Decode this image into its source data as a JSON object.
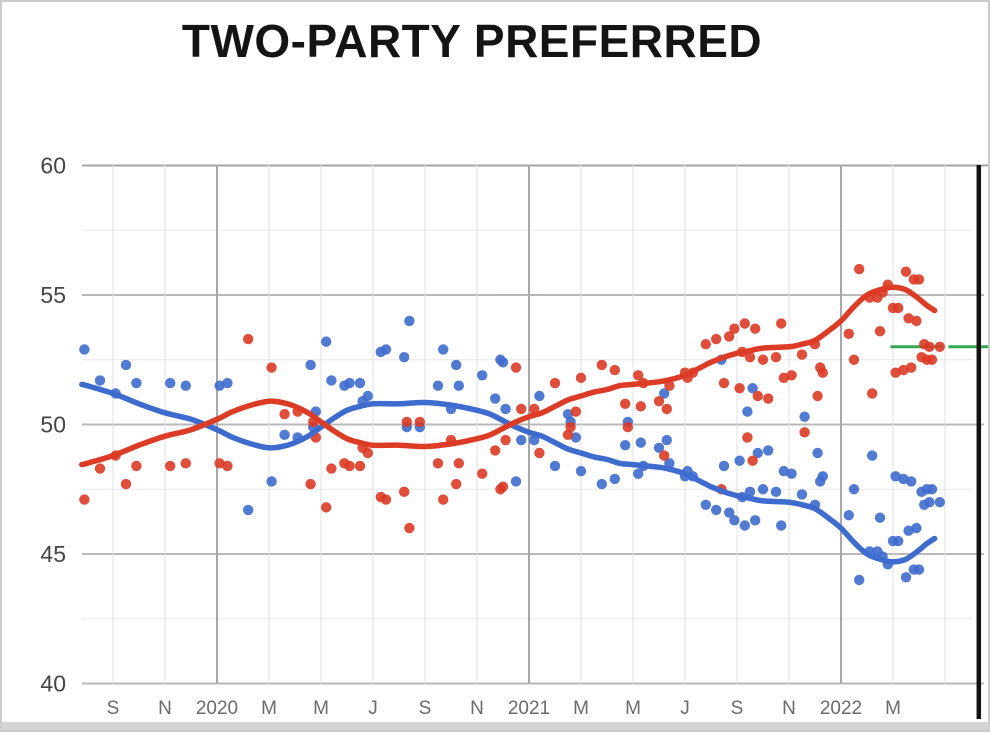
{
  "title": "TWO-PARTY PREFERRED",
  "chart_data": {
    "type": "scatter",
    "title": "TWO-PARTY PREFERRED",
    "subtitle": "",
    "xlabel": "",
    "ylabel": "",
    "ylim": [
      40,
      60
    ],
    "grid": true,
    "legend_position": "none",
    "y_axis": {
      "major_tick_labels": [
        "60",
        "55",
        "50",
        "45",
        "40"
      ],
      "major_tick_values": [
        60,
        55,
        50,
        45,
        40
      ],
      "minor_gridline_step": 2.5
    },
    "x_axis": {
      "origin": "months after Aug 2019 (m=0 is Aug 2019)",
      "ticks": [
        {
          "label": "S",
          "m": 1,
          "year_line": false
        },
        {
          "label": "N",
          "m": 3,
          "year_line": false
        },
        {
          "label": "2020",
          "m": 5,
          "year_line": true
        },
        {
          "label": "M",
          "m": 7,
          "year_line": false
        },
        {
          "label": "M",
          "m": 9,
          "year_line": false
        },
        {
          "label": "J",
          "m": 11,
          "year_line": false
        },
        {
          "label": "S",
          "m": 13,
          "year_line": false
        },
        {
          "label": "N",
          "m": 15,
          "year_line": false
        },
        {
          "label": "2021",
          "m": 17,
          "year_line": true
        },
        {
          "label": "M",
          "m": 19,
          "year_line": false
        },
        {
          "label": "M",
          "m": 21,
          "year_line": false
        },
        {
          "label": "J",
          "m": 23,
          "year_line": false
        },
        {
          "label": "S",
          "m": 25,
          "year_line": false
        },
        {
          "label": "N",
          "m": 27,
          "year_line": false
        },
        {
          "label": "2022",
          "m": 29,
          "year_line": true
        },
        {
          "label": "M",
          "m": 31,
          "year_line": false
        }
      ],
      "unlabeled_gridline_m": 33
    },
    "colors": {
      "labor_red": "#dc3b26",
      "coalition_blue": "#3e6bce",
      "result_green": "#34a853",
      "election_black": "#111111"
    },
    "series_notes": "Two-party-preferred (%). Red = Labor, Blue = Coalition. Coalition value = 100 - Labor value for every poll and trend point.",
    "polls_labor_2pp": [
      [
        -0.1,
        47.1
      ],
      [
        0.5,
        48.3
      ],
      [
        1.1,
        48.8
      ],
      [
        1.5,
        47.7
      ],
      [
        1.9,
        48.4
      ],
      [
        3.2,
        48.4
      ],
      [
        3.8,
        48.5
      ],
      [
        5.1,
        48.5
      ],
      [
        5.4,
        48.4
      ],
      [
        6.2,
        53.3
      ],
      [
        7.1,
        52.2
      ],
      [
        7.6,
        50.4
      ],
      [
        8.1,
        50.5
      ],
      [
        8.6,
        47.7
      ],
      [
        8.7,
        50.1
      ],
      [
        8.8,
        49.5
      ],
      [
        9.2,
        46.8
      ],
      [
        9.4,
        48.3
      ],
      [
        9.9,
        48.5
      ],
      [
        10.1,
        48.4
      ],
      [
        10.5,
        48.4
      ],
      [
        10.6,
        49.1
      ],
      [
        10.8,
        48.9
      ],
      [
        11.3,
        47.2
      ],
      [
        11.5,
        47.1
      ],
      [
        12.2,
        47.4
      ],
      [
        12.3,
        50.1
      ],
      [
        12.4,
        46.0
      ],
      [
        12.8,
        50.1
      ],
      [
        13.5,
        48.5
      ],
      [
        13.7,
        47.1
      ],
      [
        14.0,
        49.4
      ],
      [
        14.2,
        47.7
      ],
      [
        14.3,
        48.5
      ],
      [
        15.2,
        48.1
      ],
      [
        15.7,
        49.0
      ],
      [
        15.9,
        47.5
      ],
      [
        16.0,
        47.6
      ],
      [
        16.1,
        49.4
      ],
      [
        16.5,
        52.2
      ],
      [
        16.7,
        50.6
      ],
      [
        17.2,
        50.6
      ],
      [
        17.4,
        48.9
      ],
      [
        18.0,
        51.6
      ],
      [
        18.5,
        49.6
      ],
      [
        18.6,
        49.9
      ],
      [
        18.8,
        50.5
      ],
      [
        19.0,
        51.8
      ],
      [
        19.8,
        52.3
      ],
      [
        20.3,
        52.1
      ],
      [
        20.7,
        50.8
      ],
      [
        20.8,
        49.9
      ],
      [
        21.2,
        51.9
      ],
      [
        21.3,
        50.7
      ],
      [
        21.4,
        51.6
      ],
      [
        22.0,
        50.9
      ],
      [
        22.2,
        48.8
      ],
      [
        22.3,
        50.6
      ],
      [
        22.4,
        51.5
      ],
      [
        23.0,
        52.0
      ],
      [
        23.1,
        51.8
      ],
      [
        23.3,
        52.0
      ],
      [
        23.8,
        53.1
      ],
      [
        24.2,
        53.3
      ],
      [
        24.4,
        47.5
      ],
      [
        24.5,
        51.6
      ],
      [
        24.7,
        53.4
      ],
      [
        24.9,
        53.7
      ],
      [
        25.1,
        51.4
      ],
      [
        25.2,
        52.8
      ],
      [
        25.3,
        53.9
      ],
      [
        25.4,
        49.5
      ],
      [
        25.5,
        52.6
      ],
      [
        25.6,
        48.6
      ],
      [
        25.7,
        53.7
      ],
      [
        25.8,
        51.1
      ],
      [
        26.0,
        52.5
      ],
      [
        26.2,
        51.0
      ],
      [
        26.5,
        52.6
      ],
      [
        26.7,
        53.9
      ],
      [
        26.8,
        51.8
      ],
      [
        27.1,
        51.9
      ],
      [
        27.5,
        52.7
      ],
      [
        27.6,
        49.7
      ],
      [
        28.0,
        53.1
      ],
      [
        28.1,
        51.1
      ],
      [
        28.2,
        52.2
      ],
      [
        28.3,
        52.0
      ],
      [
        29.3,
        53.5
      ],
      [
        29.5,
        52.5
      ],
      [
        29.7,
        56.0
      ],
      [
        30.1,
        54.9
      ],
      [
        30.2,
        51.2
      ],
      [
        30.4,
        54.9
      ],
      [
        30.5,
        53.6
      ],
      [
        30.6,
        55.1
      ],
      [
        30.8,
        55.4
      ],
      [
        31.0,
        54.5
      ],
      [
        31.1,
        52.0
      ],
      [
        31.2,
        54.5
      ],
      [
        31.4,
        52.1
      ],
      [
        31.5,
        55.9
      ],
      [
        31.6,
        54.1
      ],
      [
        31.7,
        52.2
      ],
      [
        31.8,
        55.6
      ],
      [
        31.9,
        54.0
      ],
      [
        32.0,
        55.6
      ],
      [
        32.1,
        52.6
      ],
      [
        32.2,
        53.1
      ],
      [
        32.3,
        52.5
      ],
      [
        32.4,
        53.0
      ],
      [
        32.5,
        52.5
      ],
      [
        32.8,
        53.0
      ]
    ],
    "trend_labor_2pp": [
      [
        -0.2,
        48.45
      ],
      [
        0,
        48.5
      ],
      [
        1,
        48.8
      ],
      [
        2,
        49.2
      ],
      [
        3,
        49.55
      ],
      [
        4,
        49.8
      ],
      [
        5,
        50.2
      ],
      [
        5.5,
        50.45
      ],
      [
        6,
        50.65
      ],
      [
        6.5,
        50.8
      ],
      [
        7,
        50.9
      ],
      [
        7.5,
        50.85
      ],
      [
        8,
        50.7
      ],
      [
        8.5,
        50.45
      ],
      [
        9,
        50.1
      ],
      [
        9.5,
        49.75
      ],
      [
        10,
        49.45
      ],
      [
        10.5,
        49.3
      ],
      [
        11,
        49.2
      ],
      [
        12,
        49.2
      ],
      [
        13,
        49.15
      ],
      [
        14,
        49.25
      ],
      [
        15,
        49.45
      ],
      [
        15.5,
        49.6
      ],
      [
        16,
        49.85
      ],
      [
        16.5,
        50.1
      ],
      [
        17,
        50.3
      ],
      [
        17.5,
        50.45
      ],
      [
        18,
        50.7
      ],
      [
        18.5,
        50.95
      ],
      [
        19,
        51.1
      ],
      [
        19.5,
        51.25
      ],
      [
        20,
        51.35
      ],
      [
        20.5,
        51.5
      ],
      [
        21,
        51.55
      ],
      [
        22,
        51.65
      ],
      [
        22.5,
        51.75
      ],
      [
        23,
        51.9
      ],
      [
        23.5,
        52.15
      ],
      [
        24,
        52.4
      ],
      [
        24.5,
        52.6
      ],
      [
        25,
        52.75
      ],
      [
        25.5,
        52.85
      ],
      [
        26,
        52.95
      ],
      [
        27,
        53.0
      ],
      [
        27.5,
        53.1
      ],
      [
        28,
        53.25
      ],
      [
        28.5,
        53.6
      ],
      [
        29,
        54.0
      ],
      [
        29.5,
        54.55
      ],
      [
        30,
        55.0
      ],
      [
        30.5,
        55.2
      ],
      [
        31,
        55.3
      ],
      [
        31.5,
        55.2
      ],
      [
        32,
        54.85
      ],
      [
        32.3,
        54.6
      ],
      [
        32.6,
        54.4
      ]
    ],
    "markers": {
      "election_day_line": {
        "m": 34.3,
        "description": "vertical black line at right edge (election day)"
      },
      "result_line": {
        "value": 53.0,
        "from_m": 30.9,
        "to_m": 34.7,
        "description": "horizontal green dashed line at ~53% at far right"
      }
    }
  }
}
